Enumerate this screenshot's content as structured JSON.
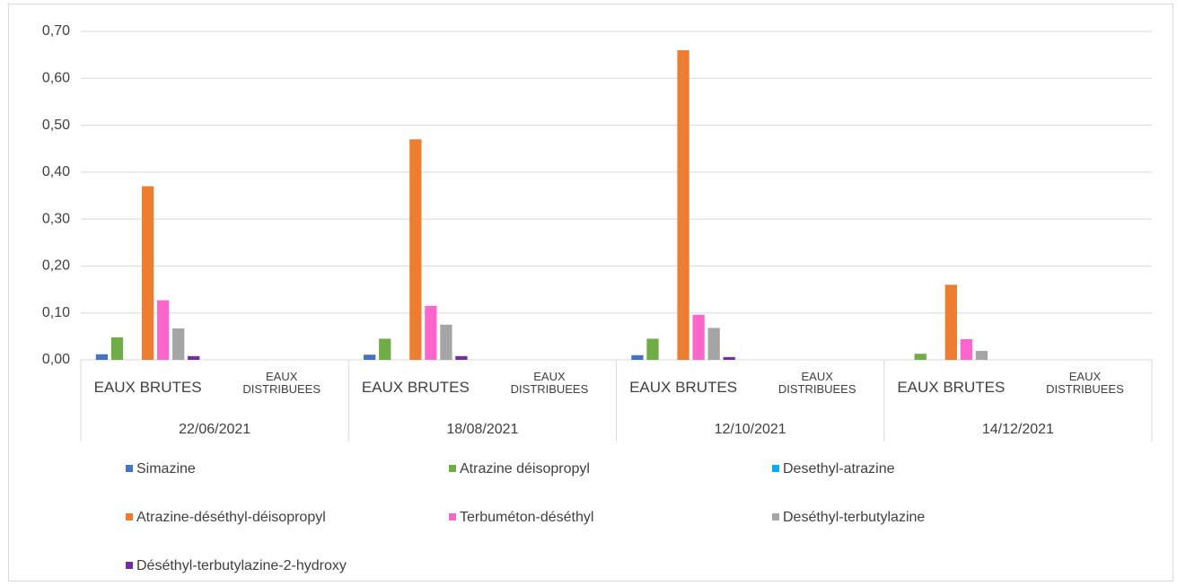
{
  "chart_data": {
    "type": "bar",
    "groups": [
      "22/06/2021",
      "18/08/2021",
      "12/10/2021",
      "14/12/2021"
    ],
    "categories": [
      "EAUX BRUTES",
      "EAUX DISTRIBUEES",
      "EAUX BRUTES",
      "EAUX DISTRIBUEES",
      "EAUX BRUTES",
      "EAUX DISTRIBUEES",
      "EAUX BRUTES",
      "EAUX DISTRIBUEES"
    ],
    "series": [
      {
        "name": "Simazine",
        "color": "#4472c4",
        "values": [
          0.012,
          null,
          0.011,
          null,
          0.01,
          null,
          0,
          null
        ]
      },
      {
        "name": "Atrazine déisopropyl",
        "color": "#70ad47",
        "values": [
          0.048,
          null,
          0.045,
          null,
          0.045,
          null,
          0.013,
          null
        ]
      },
      {
        "name": "Desethyl-atrazine",
        "color": "#00b0f0",
        "values": [
          0,
          null,
          0,
          null,
          0,
          null,
          0,
          null
        ]
      },
      {
        "name": "Atrazine-déséthyl-déisopropyl",
        "color": "#ed7d31",
        "values": [
          0.37,
          null,
          0.47,
          null,
          0.66,
          null,
          0.16,
          null
        ]
      },
      {
        "name": "Terbuméton-déséthyl",
        "color": "#ff66cc",
        "values": [
          0.127,
          null,
          0.115,
          null,
          0.096,
          null,
          0.044,
          null
        ]
      },
      {
        "name": "Deséthyl-terbutylazine",
        "color": "#a5a5a5",
        "values": [
          0.067,
          null,
          0.075,
          null,
          0.068,
          null,
          0.019,
          null
        ]
      },
      {
        "name": "Déséthyl-terbutylazine-2-hydroxy",
        "color": "#7030a0",
        "values": [
          0.008,
          null,
          0.008,
          null,
          0.006,
          null,
          0,
          null
        ]
      }
    ],
    "ylim": [
      0,
      0.7
    ],
    "yticks": [
      {
        "value": 0,
        "label": "0,00"
      },
      {
        "value": 0.1,
        "label": "0,10"
      },
      {
        "value": 0.2,
        "label": "0,20"
      },
      {
        "value": 0.3,
        "label": "0,30"
      },
      {
        "value": 0.4,
        "label": "0,40"
      },
      {
        "value": 0.5,
        "label": "0,50"
      },
      {
        "value": 0.6,
        "label": "0,60"
      },
      {
        "value": 0.7,
        "label": "0,70"
      }
    ],
    "grid": true,
    "legend": "bottom"
  }
}
